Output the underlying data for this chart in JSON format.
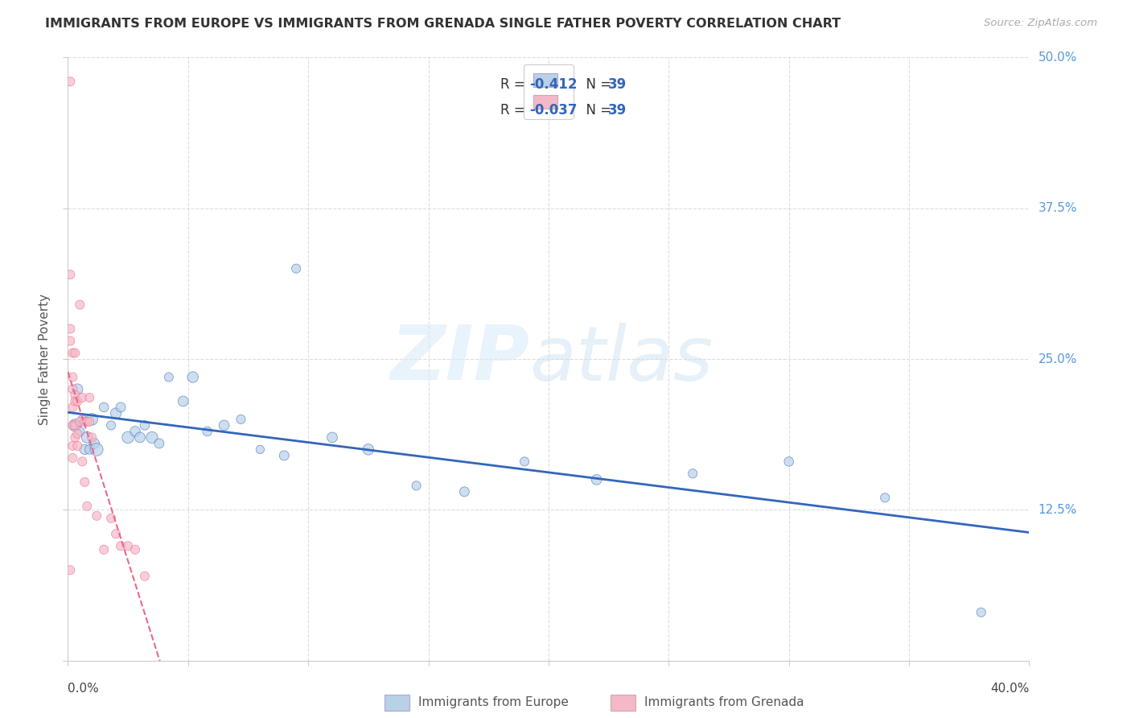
{
  "title": "IMMIGRANTS FROM EUROPE VS IMMIGRANTS FROM GRENADA SINGLE FATHER POVERTY CORRELATION CHART",
  "source": "Source: ZipAtlas.com",
  "ylabel": "Single Father Poverty",
  "right_ytick_labels": [
    "12.5%",
    "25.0%",
    "37.5%",
    "50.0%"
  ],
  "right_ytick_vals": [
    0.125,
    0.25,
    0.375,
    0.5
  ],
  "xtick_vals": [
    0.0,
    0.05,
    0.1,
    0.15,
    0.2,
    0.25,
    0.3,
    0.35,
    0.4
  ],
  "blue_color": "#b8d0e8",
  "pink_color": "#f5b8c8",
  "blue_line_color": "#3366bb",
  "pink_line_color": "#ee6688",
  "watermark_zip": "ZIP",
  "watermark_atlas": "atlas",
  "blue_x": [
    0.003,
    0.004,
    0.005,
    0.006,
    0.007,
    0.008,
    0.009,
    0.01,
    0.011,
    0.012,
    0.015,
    0.018,
    0.02,
    0.022,
    0.025,
    0.028,
    0.03,
    0.032,
    0.035,
    0.038,
    0.042,
    0.048,
    0.052,
    0.058,
    0.065,
    0.072,
    0.08,
    0.09,
    0.095,
    0.11,
    0.125,
    0.145,
    0.165,
    0.19,
    0.22,
    0.26,
    0.3,
    0.34,
    0.38
  ],
  "blue_y": [
    0.195,
    0.225,
    0.19,
    0.2,
    0.175,
    0.185,
    0.175,
    0.2,
    0.18,
    0.175,
    0.21,
    0.195,
    0.205,
    0.21,
    0.185,
    0.19,
    0.185,
    0.195,
    0.185,
    0.18,
    0.235,
    0.215,
    0.235,
    0.19,
    0.195,
    0.2,
    0.175,
    0.17,
    0.325,
    0.185,
    0.175,
    0.145,
    0.14,
    0.165,
    0.15,
    0.155,
    0.165,
    0.135,
    0.04
  ],
  "blue_sizes": [
    120,
    90,
    70,
    60,
    80,
    100,
    70,
    110,
    85,
    130,
    70,
    65,
    90,
    75,
    110,
    80,
    85,
    70,
    105,
    75,
    65,
    85,
    95,
    70,
    85,
    65,
    55,
    75,
    65,
    85,
    95,
    65,
    75,
    65,
    85,
    65,
    70,
    65,
    65
  ],
  "pink_x": [
    0.001,
    0.001,
    0.001,
    0.001,
    0.001,
    0.002,
    0.002,
    0.002,
    0.002,
    0.002,
    0.002,
    0.002,
    0.003,
    0.003,
    0.003,
    0.003,
    0.003,
    0.004,
    0.004,
    0.004,
    0.005,
    0.005,
    0.006,
    0.006,
    0.007,
    0.007,
    0.008,
    0.008,
    0.009,
    0.009,
    0.01,
    0.012,
    0.015,
    0.018,
    0.02,
    0.022,
    0.025,
    0.028,
    0.032
  ],
  "pink_y": [
    0.48,
    0.32,
    0.275,
    0.265,
    0.075,
    0.255,
    0.235,
    0.225,
    0.21,
    0.195,
    0.178,
    0.168,
    0.22,
    0.215,
    0.195,
    0.185,
    0.255,
    0.215,
    0.188,
    0.178,
    0.295,
    0.198,
    0.218,
    0.165,
    0.198,
    0.148,
    0.198,
    0.128,
    0.218,
    0.198,
    0.185,
    0.12,
    0.092,
    0.118,
    0.105,
    0.095,
    0.095,
    0.092,
    0.07
  ],
  "pink_sizes": [
    65,
    65,
    65,
    65,
    65,
    65,
    65,
    65,
    65,
    65,
    65,
    65,
    65,
    65,
    65,
    65,
    65,
    65,
    65,
    65,
    65,
    65,
    65,
    65,
    65,
    65,
    65,
    65,
    65,
    65,
    65,
    65,
    65,
    65,
    65,
    65,
    65,
    65,
    65
  ]
}
